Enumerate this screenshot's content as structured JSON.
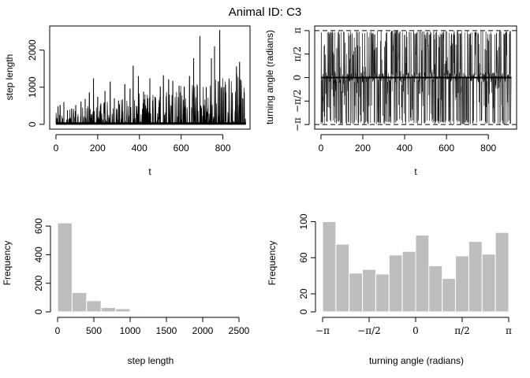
{
  "figure": {
    "title": "Animal ID: C3"
  },
  "chart_data": [
    {
      "type": "line",
      "xlabel": "t",
      "ylabel": "step length",
      "xlim": [
        0,
        910
      ],
      "ylim": [
        0,
        2600
      ],
      "x_ticks": [
        0,
        200,
        400,
        600,
        800
      ],
      "y_ticks": [
        0,
        1000,
        2000
      ],
      "spikes": [
        [
          10,
          480
        ],
        [
          20,
          520
        ],
        [
          38,
          600
        ],
        [
          55,
          380
        ],
        [
          75,
          420
        ],
        [
          95,
          520
        ],
        [
          120,
          610
        ],
        [
          140,
          680
        ],
        [
          160,
          860
        ],
        [
          180,
          1240
        ],
        [
          200,
          740
        ],
        [
          215,
          560
        ],
        [
          235,
          900
        ],
        [
          260,
          1150
        ],
        [
          280,
          700
        ],
        [
          300,
          640
        ],
        [
          330,
          1080
        ],
        [
          355,
          960
        ],
        [
          370,
          1580
        ],
        [
          395,
          1300
        ],
        [
          420,
          880
        ],
        [
          450,
          1240
        ],
        [
          475,
          740
        ],
        [
          500,
          1020
        ],
        [
          515,
          1320
        ],
        [
          540,
          1210
        ],
        [
          560,
          1170
        ],
        [
          590,
          1040
        ],
        [
          615,
          1000
        ],
        [
          640,
          1300
        ],
        [
          660,
          1780
        ],
        [
          690,
          2380
        ],
        [
          720,
          1000
        ],
        [
          745,
          1780
        ],
        [
          760,
          2100
        ],
        [
          785,
          2540
        ],
        [
          805,
          1000
        ],
        [
          830,
          1180
        ],
        [
          845,
          850
        ],
        [
          865,
          1560
        ],
        [
          880,
          1680
        ],
        [
          895,
          700
        ]
      ]
    },
    {
      "type": "line",
      "xlabel": "t",
      "ylabel": "turning angle (radians)",
      "xlim": [
        0,
        910
      ],
      "ylim": [
        -3.3,
        3.3
      ],
      "x_ticks": [
        0,
        200,
        400,
        600,
        800
      ],
      "y_tick_labels": [
        "−π",
        "−π/2",
        "0",
        "π/2",
        "π"
      ],
      "y_tick_values": [
        -3.14159,
        -1.5708,
        0,
        1.5708,
        3.14159
      ],
      "reference_lines": [
        -3.14159,
        3.14159
      ]
    },
    {
      "type": "bar",
      "xlabel": "step length",
      "ylabel": "Frequency",
      "xlim": [
        0,
        2500
      ],
      "ylim": [
        0,
        650
      ],
      "x_ticks": [
        0,
        500,
        1000,
        1500,
        2000,
        2500
      ],
      "y_ticks": [
        0,
        200,
        400,
        600
      ],
      "bin_edges": [
        0,
        200,
        400,
        600,
        800,
        1000,
        1200,
        1400,
        1600,
        1800,
        2000,
        2200,
        2400,
        2600
      ],
      "counts": [
        622,
        135,
        78,
        30,
        22,
        6,
        3,
        0,
        0,
        0,
        0,
        0,
        0
      ]
    },
    {
      "type": "bar",
      "xlabel": "turning angle (radians)",
      "ylabel": "Frequency",
      "xlim": [
        -3.14159,
        3.14159
      ],
      "ylim": [
        0,
        103
      ],
      "x_tick_labels": [
        "−π",
        "−π/2",
        "0",
        "π/2",
        "π"
      ],
      "x_tick_values": [
        -3.14159,
        -1.5708,
        0,
        1.5708,
        3.14159
      ],
      "y_ticks": [
        0,
        20,
        60,
        100
      ],
      "bin_range": [
        -3.14159,
        3.14159
      ],
      "counts": [
        100,
        75,
        43,
        47,
        42,
        63,
        67,
        85,
        51,
        37,
        62,
        78,
        64,
        88
      ]
    }
  ]
}
